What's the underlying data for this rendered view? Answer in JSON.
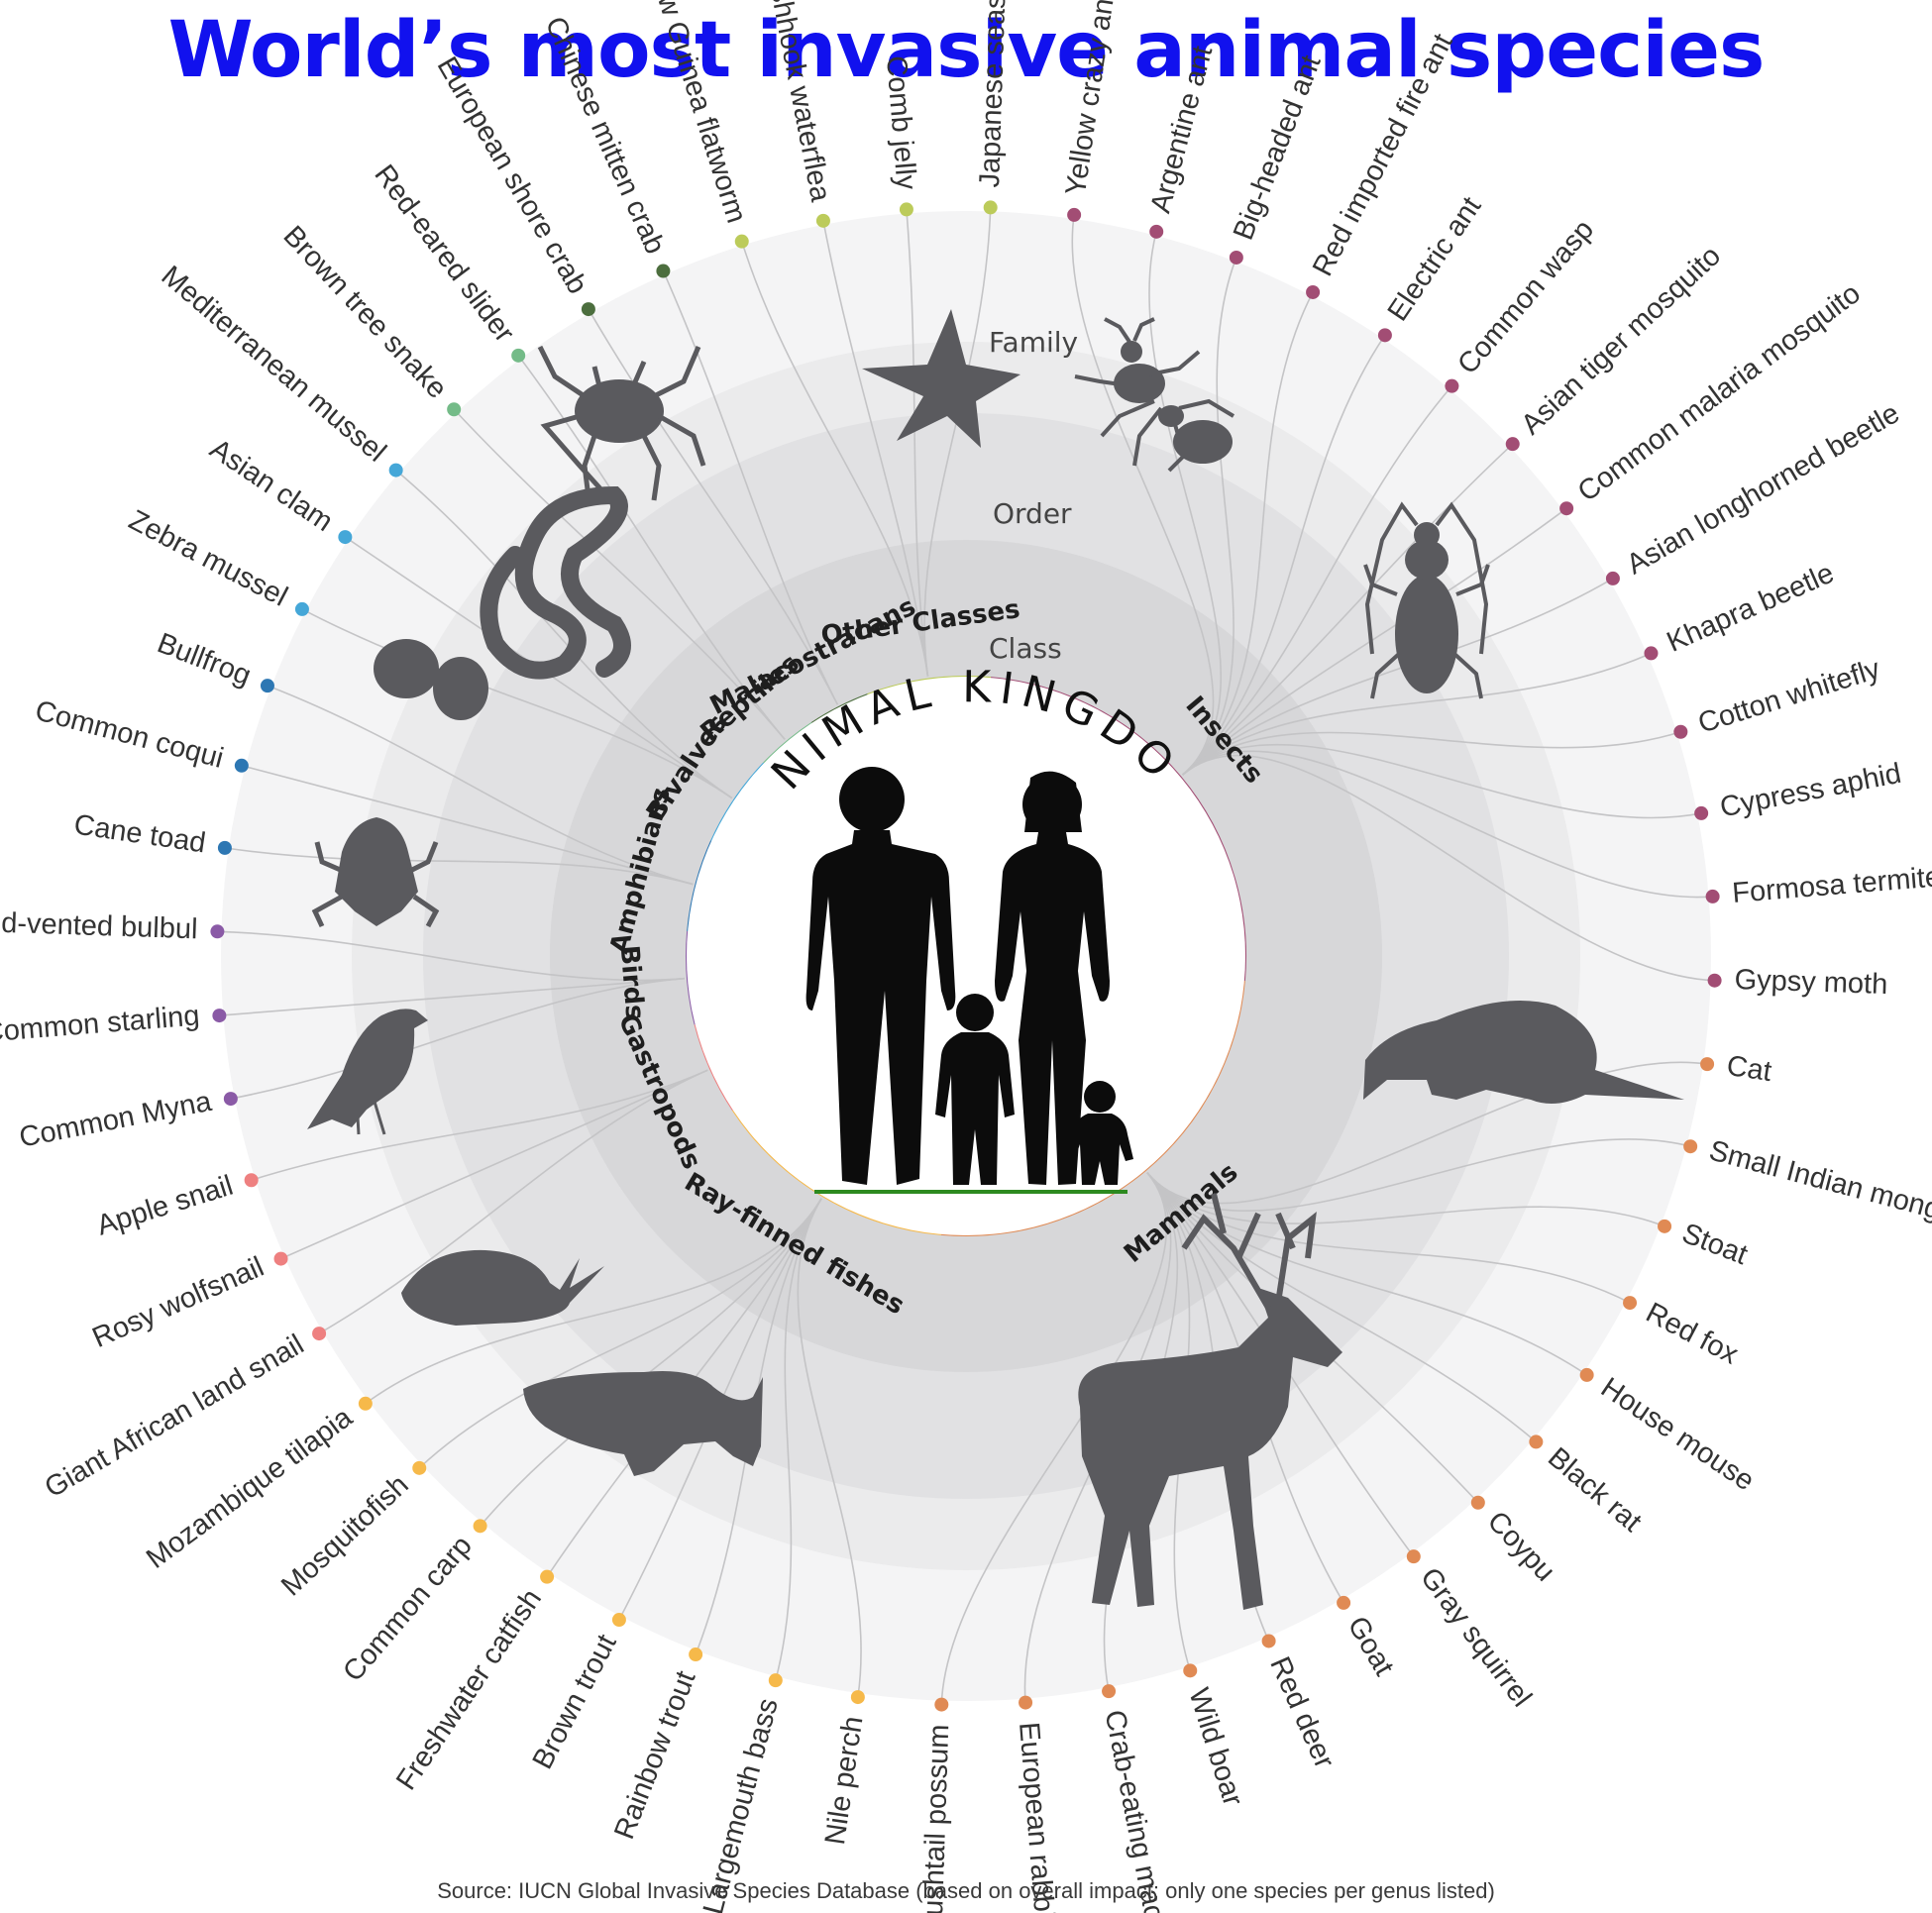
{
  "title": "World’s most invasive animal species",
  "source": "Source: IUCN Global Invasive Species Database (based on overall impact; only one species per genus listed)",
  "center_label": "ANIMAL KINGDOM",
  "levels": {
    "class": "Class",
    "order": "Order",
    "family": "Family"
  },
  "colors": {
    "title": "#1111ee",
    "Insects": "#a24d74",
    "Mammals": "#e08a54",
    "Ray-finned fishes": "#f6b94a",
    "Gastropods": "#ee8080",
    "Birds": "#8a5aa6",
    "Amphibians": "#2d77b3",
    "Bivalves": "#45a7d8",
    "Reptiles": "#74bb88",
    "Malacostracans": "#4c6e3e",
    "Other Classes": "#bccb5a"
  },
  "classes": [
    {
      "name": "Insects",
      "label": "Insects",
      "species": [
        "Yellow crazy ant",
        "Argentine ant",
        "Big-headed ant",
        "Red imported fire ant",
        "Electric ant",
        "Common wasp",
        "Asian tiger mosquito",
        "Common malaria mosquito",
        "Asian longhorned beetle",
        "Khapra beetle",
        "Cotton whitefly",
        "Cypress aphid",
        "Formosa termite",
        "Gypsy moth"
      ]
    },
    {
      "name": "Mammals",
      "label": "Mammals",
      "species": [
        "Cat",
        "Small Indian mongoose",
        "Stoat",
        "Red fox",
        "House mouse",
        "Black rat",
        "Coypu",
        "Gray squirrel",
        "Goat",
        "Red deer",
        "Wild boar",
        "Crab-eating macaque",
        "European rabbit",
        "Brushtail possum"
      ]
    },
    {
      "name": "Ray-finned fishes",
      "label": "Ray-finned fishes",
      "species": [
        "Nile perch",
        "Largemouth bass",
        "Rainbow trout",
        "Brown trout",
        "Freshwater catfish",
        "Common carp",
        "Mosquitofish",
        "Mozambique tilapia"
      ]
    },
    {
      "name": "Gastropods",
      "label": "Gastropods",
      "species": [
        "Giant African land snail",
        "Rosy wolfsnail",
        "Apple snail"
      ]
    },
    {
      "name": "Birds",
      "label": "Birds",
      "species": [
        "Common Myna",
        "Common starling",
        "Red-vented bulbul"
      ]
    },
    {
      "name": "Amphibians",
      "label": "Amphibians",
      "species": [
        "Cane toad",
        "Common coqui",
        "Bullfrog"
      ]
    },
    {
      "name": "Bivalves",
      "label": "Bivalves",
      "species": [
        "Zebra mussel",
        "Asian clam",
        "Mediterranean mussel"
      ]
    },
    {
      "name": "Reptiles",
      "label": "Reptiles",
      "species": [
        "Brown tree snake",
        "Red-eared slider"
      ]
    },
    {
      "name": "Malacostracans",
      "label": "Malacostracans",
      "species": [
        "European shore crab",
        "Chinese mitten crab"
      ]
    },
    {
      "name": "Other Classes",
      "label": "Other Classes",
      "species": [
        "New Guinea flatworm",
        "Fishhook waterflea",
        "Comb jelly",
        "Japanese seastar"
      ]
    }
  ],
  "silhouettes": [
    "ant-icon",
    "longhorned-beetle-icon",
    "mongoose-icon",
    "deer-icon",
    "fish-icon",
    "snail-icon",
    "bird-icon",
    "frog-icon",
    "clam-icon",
    "snake-icon",
    "crab-icon",
    "starfish-icon",
    "human-family-icon"
  ]
}
